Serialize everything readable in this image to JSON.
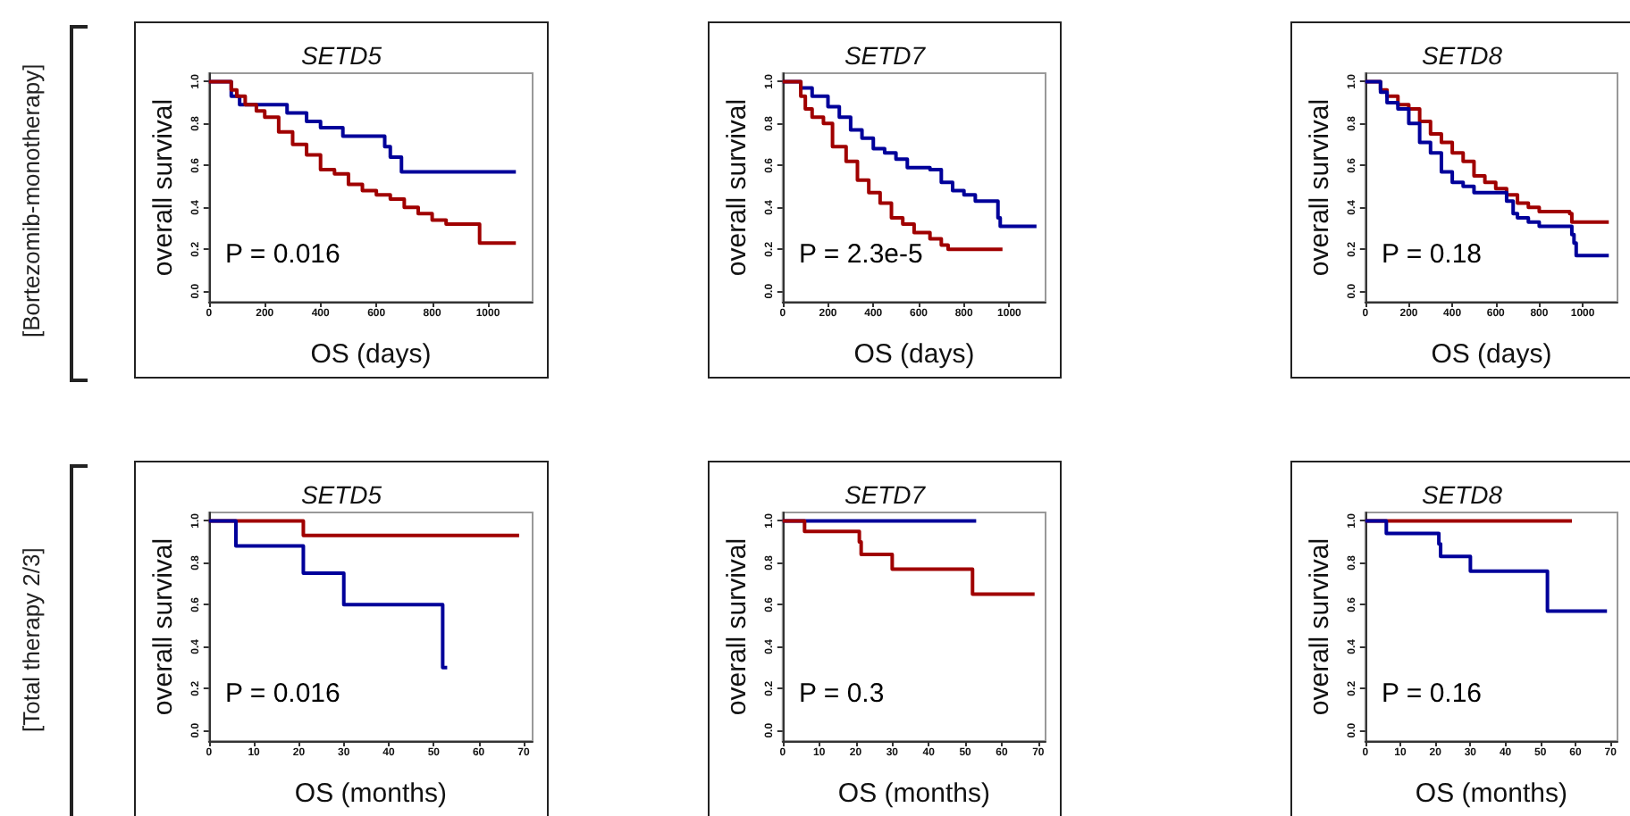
{
  "chart_data": [
    {
      "type": "step",
      "title": "SETD5",
      "xlabel": "OS (days)",
      "ylabel": "overall survival",
      "xlim": [
        0,
        1160
      ],
      "ylim": [
        -0.05,
        1.04
      ],
      "xticks": [
        0,
        200,
        400,
        600,
        800,
        1000
      ],
      "yticks": [
        {
          "value": 0,
          "label": "0.0"
        },
        {
          "value": 0.2,
          "label": "0.2"
        },
        {
          "value": 0.4,
          "label": "0.4"
        },
        {
          "value": 0.6,
          "label": "0.6"
        },
        {
          "value": 0.8,
          "label": "0.8"
        },
        {
          "value": 1,
          "label": "1.0"
        }
      ],
      "grid": false,
      "annotations": [
        "[Bortezomib-monotherapy]",
        "P = 0.016"
      ],
      "series": [
        {
          "color": "#00009a",
          "x": [
            0,
            80,
            110,
            280,
            350,
            400,
            480,
            630,
            650,
            690,
            1100
          ],
          "values": [
            1,
            0.93,
            0.89,
            0.85,
            0.81,
            0.78,
            0.74,
            0.69,
            0.64,
            0.57,
            0.57
          ]
        },
        {
          "color": "#a00000",
          "x": [
            0,
            60,
            80,
            100,
            130,
            170,
            200,
            250,
            300,
            350,
            400,
            450,
            500,
            550,
            600,
            650,
            700,
            750,
            800,
            850,
            960,
            970,
            1100
          ],
          "values": [
            1,
            1,
            0.96,
            0.93,
            0.89,
            0.86,
            0.83,
            0.76,
            0.7,
            0.65,
            0.58,
            0.56,
            0.51,
            0.48,
            0.46,
            0.44,
            0.4,
            0.37,
            0.34,
            0.32,
            0.32,
            0.23,
            0.23
          ]
        }
      ]
    },
    {
      "type": "step",
      "title": "SETD7",
      "xlabel": "OS (days)",
      "ylabel": "overall survival",
      "xlim": [
        0,
        1160
      ],
      "ylim": [
        -0.05,
        1.04
      ],
      "xticks": [
        0,
        200,
        400,
        600,
        800,
        1000
      ],
      "yticks": [
        {
          "value": 0,
          "label": "0.0"
        },
        {
          "value": 0.2,
          "label": "0.2"
        },
        {
          "value": 0.4,
          "label": "0.4"
        },
        {
          "value": 0.6,
          "label": "0.6"
        },
        {
          "value": 0.8,
          "label": "0.8"
        },
        {
          "value": 1,
          "label": "1.0"
        }
      ],
      "grid": false,
      "annotations": [
        "P = 2.3e-5"
      ],
      "series": [
        {
          "color": "#00009a",
          "x": [
            0,
            80,
            130,
            200,
            250,
            300,
            350,
            400,
            450,
            500,
            550,
            650,
            700,
            750,
            800,
            850,
            940,
            950,
            960,
            1120
          ],
          "values": [
            1,
            0.97,
            0.93,
            0.88,
            0.83,
            0.77,
            0.73,
            0.68,
            0.66,
            0.63,
            0.59,
            0.58,
            0.52,
            0.48,
            0.46,
            0.43,
            0.43,
            0.35,
            0.31,
            0.31
          ]
        },
        {
          "color": "#a00000",
          "x": [
            0,
            60,
            80,
            100,
            130,
            180,
            220,
            280,
            330,
            380,
            430,
            480,
            530,
            580,
            650,
            700,
            730,
            970
          ],
          "values": [
            1,
            1,
            0.93,
            0.87,
            0.83,
            0.8,
            0.69,
            0.62,
            0.53,
            0.47,
            0.42,
            0.35,
            0.32,
            0.28,
            0.25,
            0.22,
            0.2,
            0.2
          ]
        }
      ]
    },
    {
      "type": "step",
      "title": "SETD8",
      "xlabel": "OS (days)",
      "ylabel": "overall survival",
      "xlim": [
        0,
        1160
      ],
      "ylim": [
        -0.05,
        1.04
      ],
      "xticks": [
        0,
        200,
        400,
        600,
        800,
        1000
      ],
      "yticks": [
        {
          "value": 0,
          "label": "0.0"
        },
        {
          "value": 0.2,
          "label": "0.2"
        },
        {
          "value": 0.4,
          "label": "0.4"
        },
        {
          "value": 0.6,
          "label": "0.6"
        },
        {
          "value": 0.8,
          "label": "0.8"
        },
        {
          "value": 1,
          "label": "1.0"
        }
      ],
      "grid": false,
      "annotations": [
        "P = 0.18"
      ],
      "series": [
        {
          "color": "#a00000",
          "x": [
            0,
            50,
            70,
            100,
            150,
            200,
            250,
            300,
            350,
            400,
            450,
            500,
            550,
            600,
            650,
            700,
            750,
            800,
            940,
            950,
            1120
          ],
          "values": [
            1,
            1,
            0.96,
            0.93,
            0.89,
            0.87,
            0.81,
            0.75,
            0.71,
            0.66,
            0.62,
            0.55,
            0.52,
            0.49,
            0.46,
            0.42,
            0.4,
            0.38,
            0.37,
            0.33,
            0.33
          ]
        },
        {
          "color": "#00009a",
          "x": [
            0,
            50,
            70,
            100,
            150,
            200,
            250,
            300,
            350,
            400,
            450,
            500,
            600,
            650,
            680,
            700,
            750,
            800,
            940,
            950,
            960,
            970,
            1120
          ],
          "values": [
            1,
            1,
            0.95,
            0.9,
            0.87,
            0.8,
            0.71,
            0.66,
            0.57,
            0.52,
            0.5,
            0.47,
            0.47,
            0.43,
            0.37,
            0.35,
            0.33,
            0.31,
            0.31,
            0.27,
            0.23,
            0.17,
            0.17
          ]
        }
      ]
    },
    {
      "type": "step",
      "title": "SETD5",
      "xlabel": "OS (months)",
      "ylabel": "overall survival",
      "xlim": [
        0,
        72
      ],
      "ylim": [
        -0.05,
        1.04
      ],
      "xticks": [
        0,
        10,
        20,
        30,
        40,
        50,
        60,
        70
      ],
      "yticks": [
        {
          "value": 0,
          "label": "0.0"
        },
        {
          "value": 0.2,
          "label": "0.2"
        },
        {
          "value": 0.4,
          "label": "0.4"
        },
        {
          "value": 0.6,
          "label": "0.6"
        },
        {
          "value": 0.8,
          "label": "0.8"
        },
        {
          "value": 1,
          "label": "1.0"
        }
      ],
      "grid": false,
      "annotations": [
        "[Total therapy 2/3]",
        "P = 0.016"
      ],
      "series": [
        {
          "color": "#a00000",
          "x": [
            0,
            21,
            69
          ],
          "values": [
            1,
            0.93,
            0.93
          ]
        },
        {
          "color": "#00009a",
          "x": [
            0,
            6,
            21,
            30,
            52,
            53
          ],
          "values": [
            1,
            0.88,
            0.75,
            0.6,
            0.3,
            0.3
          ]
        }
      ]
    },
    {
      "type": "step",
      "title": "SETD7",
      "xlabel": "OS (months)",
      "ylabel": "overall survival",
      "xlim": [
        0,
        72
      ],
      "ylim": [
        -0.05,
        1.04
      ],
      "xticks": [
        0,
        10,
        20,
        30,
        40,
        50,
        60,
        70
      ],
      "yticks": [
        {
          "value": 0,
          "label": "0.0"
        },
        {
          "value": 0.2,
          "label": "0.2"
        },
        {
          "value": 0.4,
          "label": "0.4"
        },
        {
          "value": 0.6,
          "label": "0.6"
        },
        {
          "value": 0.8,
          "label": "0.8"
        },
        {
          "value": 1,
          "label": "1.0"
        }
      ],
      "grid": false,
      "annotations": [
        "P = 0.3"
      ],
      "series": [
        {
          "color": "#00009a",
          "x": [
            0,
            53
          ],
          "values": [
            1,
            1
          ]
        },
        {
          "color": "#a00000",
          "x": [
            0,
            6,
            21,
            21.5,
            30,
            52,
            69
          ],
          "values": [
            1,
            0.95,
            0.9,
            0.84,
            0.77,
            0.65,
            0.65
          ]
        }
      ]
    },
    {
      "type": "step",
      "title": "SETD8",
      "xlabel": "OS (months)",
      "ylabel": "overall survival",
      "xlim": [
        0,
        72
      ],
      "ylim": [
        -0.05,
        1.04
      ],
      "xticks": [
        0,
        10,
        20,
        30,
        40,
        50,
        60,
        70
      ],
      "yticks": [
        {
          "value": 0,
          "label": "0.0"
        },
        {
          "value": 0.2,
          "label": "0.2"
        },
        {
          "value": 0.4,
          "label": "0.4"
        },
        {
          "value": 0.6,
          "label": "0.6"
        },
        {
          "value": 0.8,
          "label": "0.8"
        },
        {
          "value": 1,
          "label": "1.0"
        }
      ],
      "grid": false,
      "annotations": [
        "P = 0.16"
      ],
      "series": [
        {
          "color": "#a00000",
          "x": [
            0,
            59
          ],
          "values": [
            1,
            1
          ]
        },
        {
          "color": "#00009a",
          "x": [
            0,
            6,
            21,
            21.5,
            30,
            52,
            69
          ],
          "values": [
            1,
            0.94,
            0.89,
            0.83,
            0.76,
            0.57,
            0.57
          ]
        }
      ]
    }
  ]
}
